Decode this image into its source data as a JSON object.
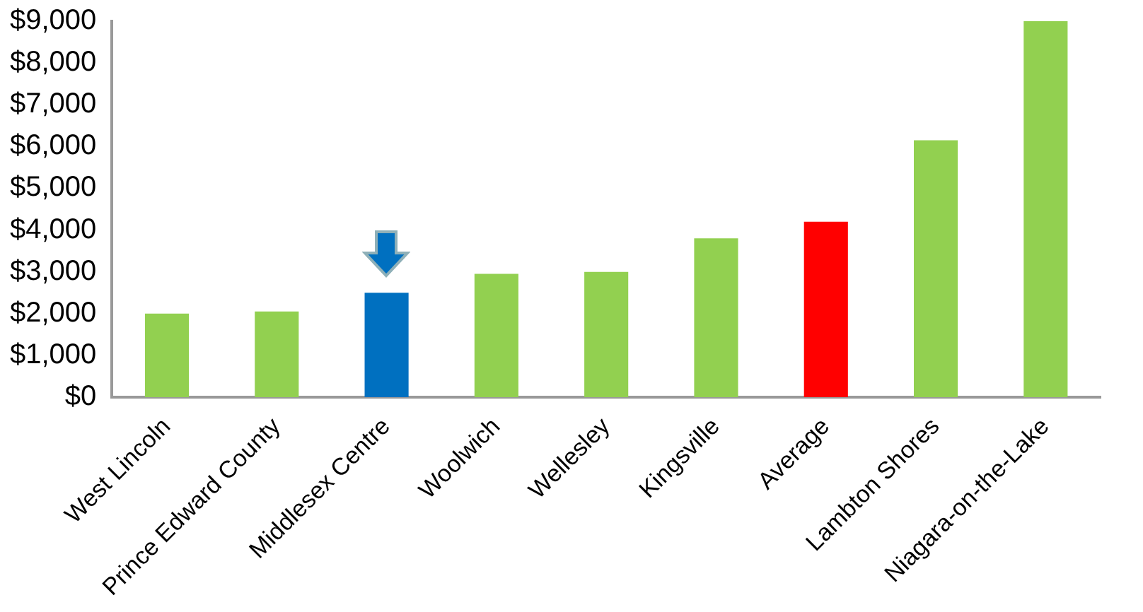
{
  "chart_data": {
    "type": "bar",
    "categories": [
      "West Lincoln",
      "Prince Edward County",
      "Middlesex Centre",
      "Woolwich",
      "Wellesley",
      "Kingsville",
      "Average",
      "Lambton Shores",
      "Niagara-on-the-Lake"
    ],
    "values": [
      2000,
      2050,
      2500,
      2950,
      3000,
      3800,
      4200,
      6150,
      9000
    ],
    "colors": [
      "#92d050",
      "#92d050",
      "#0070c0",
      "#92d050",
      "#92d050",
      "#92d050",
      "#ff0000",
      "#92d050",
      "#92d050"
    ],
    "ylim": [
      0,
      9000
    ],
    "yticks": [
      {
        "value": 0,
        "label": "$0"
      },
      {
        "value": 1000,
        "label": "$1,000"
      },
      {
        "value": 2000,
        "label": "$2,000"
      },
      {
        "value": 3000,
        "label": "$3,000"
      },
      {
        "value": 4000,
        "label": "$4,000"
      },
      {
        "value": 5000,
        "label": "$5,000"
      },
      {
        "value": 6000,
        "label": "$6,000"
      },
      {
        "value": 7000,
        "label": "$7,000"
      },
      {
        "value": 8000,
        "label": "$8,000"
      },
      {
        "value": 9000,
        "label": "$9,000"
      }
    ],
    "grid": false,
    "legend": false
  }
}
